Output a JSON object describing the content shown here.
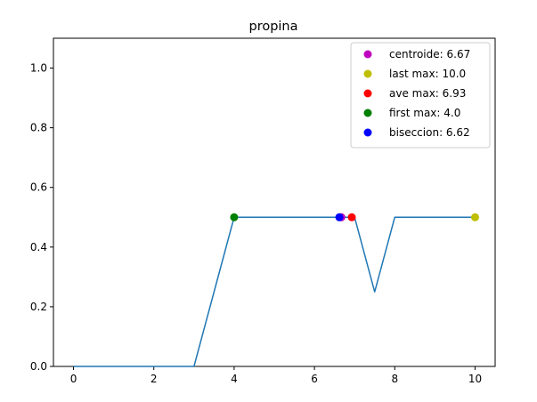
{
  "chart_data": {
    "type": "line",
    "title": "propina",
    "xlabel": "",
    "ylabel": "",
    "xlim": [
      -0.5,
      10.5
    ],
    "ylim": [
      0.0,
      1.1
    ],
    "xticks": [
      0,
      2,
      4,
      6,
      8,
      10
    ],
    "yticks": [
      0.0,
      0.2,
      0.4,
      0.6,
      0.8,
      1.0
    ],
    "xtick_labels": [
      "0",
      "2",
      "4",
      "6",
      "8",
      "10"
    ],
    "ytick_labels": [
      "0.0",
      "0.2",
      "0.4",
      "0.6",
      "0.8",
      "1.0"
    ],
    "grid": false,
    "legend_position": "top-right",
    "line": {
      "color": "#1f77b4",
      "x": [
        0,
        3,
        4,
        6.62,
        6.67,
        6.93,
        7,
        7.5,
        8,
        10
      ],
      "y": [
        0,
        0,
        0.5,
        0.5,
        0.5,
        0.5,
        0.5,
        0.25,
        0.5,
        0.5
      ]
    },
    "markers": [
      {
        "label": "centroide: 6.67",
        "x": 6.67,
        "y": 0.5,
        "color": "#bf00bf"
      },
      {
        "label": "last max: 10.0",
        "x": 10.0,
        "y": 0.5,
        "color": "#bfbf00"
      },
      {
        "label": "ave max: 6.93",
        "x": 6.93,
        "y": 0.5,
        "color": "#ff0000"
      },
      {
        "label": "first max: 4.0",
        "x": 4.0,
        "y": 0.5,
        "color": "#008000"
      },
      {
        "label": "biseccion: 6.62",
        "x": 6.62,
        "y": 0.5,
        "color": "#0000ff"
      }
    ]
  }
}
